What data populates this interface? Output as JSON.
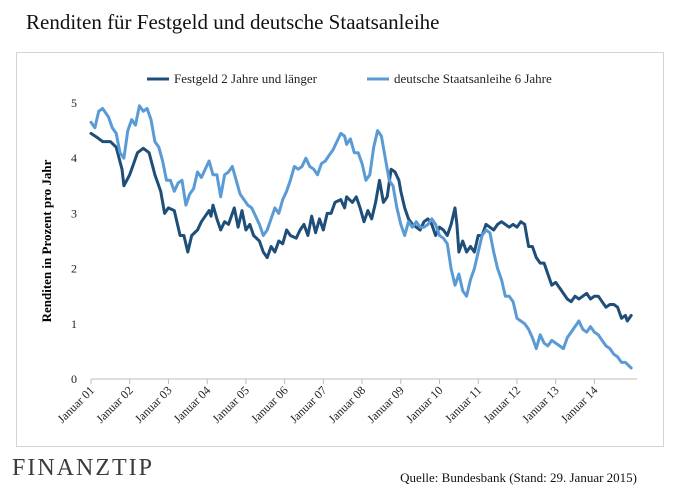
{
  "chart_data": {
    "type": "line",
    "title": "Renditen für Festgeld und deutsche Staatsanleihe",
    "ylabel": "Renditen in Prozent pro Jahr",
    "xlabel": "",
    "ylim": [
      0,
      5
    ],
    "yticks": [
      0,
      1,
      2,
      3,
      4,
      5
    ],
    "xlim": [
      2001.0,
      2015.1
    ],
    "xtick_labels": [
      "Januar 01",
      "Januar 02",
      "Januar 03",
      "Januar 04",
      "Januar 05",
      "Januar 06",
      "Januar 07",
      "Januar 08",
      "Januar 09",
      "Januar 10",
      "Januar 11",
      "Januar 12",
      "Januar 13",
      "Januar 14"
    ],
    "xtick_positions": [
      2001,
      2002,
      2003,
      2004,
      2005,
      2006,
      2007,
      2008,
      2009,
      2010,
      2011,
      2012,
      2013,
      2014
    ],
    "grid": false,
    "legend": "top",
    "series": [
      {
        "name": "Festgeld 2 Jahre und länger",
        "color": "#1f4e79",
        "points": [
          [
            2001.0,
            4.45
          ],
          [
            2001.15,
            4.38
          ],
          [
            2001.3,
            4.3
          ],
          [
            2001.5,
            4.3
          ],
          [
            2001.65,
            4.2
          ],
          [
            2001.8,
            3.8
          ],
          [
            2001.85,
            3.5
          ],
          [
            2002.0,
            3.7
          ],
          [
            2002.2,
            4.1
          ],
          [
            2002.35,
            4.18
          ],
          [
            2002.5,
            4.1
          ],
          [
            2002.65,
            3.7
          ],
          [
            2002.8,
            3.4
          ],
          [
            2002.9,
            3.0
          ],
          [
            2003.0,
            3.1
          ],
          [
            2003.15,
            3.05
          ],
          [
            2003.3,
            2.6
          ],
          [
            2003.4,
            2.6
          ],
          [
            2003.5,
            2.3
          ],
          [
            2003.6,
            2.6
          ],
          [
            2003.75,
            2.7
          ],
          [
            2003.85,
            2.85
          ],
          [
            2003.95,
            2.95
          ],
          [
            2004.05,
            3.05
          ],
          [
            2004.1,
            2.95
          ],
          [
            2004.15,
            3.15
          ],
          [
            2004.25,
            2.9
          ],
          [
            2004.35,
            2.7
          ],
          [
            2004.45,
            2.85
          ],
          [
            2004.55,
            2.8
          ],
          [
            2004.7,
            3.1
          ],
          [
            2004.8,
            2.75
          ],
          [
            2004.9,
            3.05
          ],
          [
            2005.0,
            2.7
          ],
          [
            2005.1,
            2.8
          ],
          [
            2005.2,
            2.6
          ],
          [
            2005.35,
            2.5
          ],
          [
            2005.45,
            2.3
          ],
          [
            2005.55,
            2.2
          ],
          [
            2005.65,
            2.4
          ],
          [
            2005.75,
            2.3
          ],
          [
            2005.85,
            2.5
          ],
          [
            2005.95,
            2.45
          ],
          [
            2006.05,
            2.7
          ],
          [
            2006.15,
            2.6
          ],
          [
            2006.3,
            2.55
          ],
          [
            2006.4,
            2.7
          ],
          [
            2006.5,
            2.8
          ],
          [
            2006.6,
            2.6
          ],
          [
            2006.7,
            2.95
          ],
          [
            2006.8,
            2.65
          ],
          [
            2006.9,
            2.9
          ],
          [
            2007.0,
            2.7
          ],
          [
            2007.1,
            3.0
          ],
          [
            2007.2,
            3.0
          ],
          [
            2007.3,
            3.2
          ],
          [
            2007.45,
            3.25
          ],
          [
            2007.55,
            3.1
          ],
          [
            2007.6,
            3.3
          ],
          [
            2007.75,
            3.2
          ],
          [
            2007.85,
            3.3
          ],
          [
            2007.95,
            3.1
          ],
          [
            2008.05,
            2.85
          ],
          [
            2008.15,
            3.05
          ],
          [
            2008.25,
            2.9
          ],
          [
            2008.35,
            3.2
          ],
          [
            2008.45,
            3.6
          ],
          [
            2008.55,
            3.2
          ],
          [
            2008.65,
            3.3
          ],
          [
            2008.75,
            3.8
          ],
          [
            2008.85,
            3.75
          ],
          [
            2008.95,
            3.6
          ],
          [
            2009.0,
            3.4
          ],
          [
            2009.1,
            3.1
          ],
          [
            2009.2,
            2.9
          ],
          [
            2009.3,
            2.8
          ],
          [
            2009.4,
            2.75
          ],
          [
            2009.5,
            2.7
          ],
          [
            2009.6,
            2.85
          ],
          [
            2009.7,
            2.9
          ],
          [
            2009.8,
            2.8
          ],
          [
            2009.9,
            2.6
          ],
          [
            2010.0,
            2.75
          ],
          [
            2010.1,
            2.7
          ],
          [
            2010.2,
            2.6
          ],
          [
            2010.3,
            2.8
          ],
          [
            2010.4,
            3.1
          ],
          [
            2010.45,
            2.8
          ],
          [
            2010.5,
            2.3
          ],
          [
            2010.6,
            2.5
          ],
          [
            2010.7,
            2.3
          ],
          [
            2010.8,
            2.4
          ],
          [
            2010.9,
            2.3
          ],
          [
            2011.0,
            2.6
          ],
          [
            2011.1,
            2.6
          ],
          [
            2011.2,
            2.8
          ],
          [
            2011.3,
            2.75
          ],
          [
            2011.4,
            2.7
          ],
          [
            2011.5,
            2.8
          ],
          [
            2011.6,
            2.85
          ],
          [
            2011.7,
            2.8
          ],
          [
            2011.8,
            2.75
          ],
          [
            2011.9,
            2.8
          ],
          [
            2012.0,
            2.75
          ],
          [
            2012.1,
            2.85
          ],
          [
            2012.2,
            2.8
          ],
          [
            2012.3,
            2.4
          ],
          [
            2012.4,
            2.4
          ],
          [
            2012.5,
            2.2
          ],
          [
            2012.6,
            2.1
          ],
          [
            2012.7,
            2.1
          ],
          [
            2012.8,
            1.9
          ],
          [
            2012.9,
            1.7
          ],
          [
            2013.0,
            1.75
          ],
          [
            2013.1,
            1.65
          ],
          [
            2013.2,
            1.55
          ],
          [
            2013.3,
            1.45
          ],
          [
            2013.4,
            1.4
          ],
          [
            2013.5,
            1.5
          ],
          [
            2013.6,
            1.45
          ],
          [
            2013.7,
            1.5
          ],
          [
            2013.8,
            1.55
          ],
          [
            2013.9,
            1.45
          ],
          [
            2014.0,
            1.5
          ],
          [
            2014.1,
            1.5
          ],
          [
            2014.2,
            1.4
          ],
          [
            2014.3,
            1.3
          ],
          [
            2014.4,
            1.35
          ],
          [
            2014.5,
            1.35
          ],
          [
            2014.6,
            1.3
          ],
          [
            2014.7,
            1.1
          ],
          [
            2014.8,
            1.15
          ],
          [
            2014.85,
            1.05
          ],
          [
            2014.95,
            1.15
          ]
        ]
      },
      {
        "name": "deutsche Staatsanleihe 6 Jahre",
        "color": "#5b9bd5",
        "points": [
          [
            2001.0,
            4.65
          ],
          [
            2001.1,
            4.55
          ],
          [
            2001.2,
            4.85
          ],
          [
            2001.3,
            4.9
          ],
          [
            2001.45,
            4.75
          ],
          [
            2001.55,
            4.55
          ],
          [
            2001.65,
            4.45
          ],
          [
            2001.75,
            4.1
          ],
          [
            2001.85,
            4.0
          ],
          [
            2001.95,
            4.5
          ],
          [
            2002.05,
            4.7
          ],
          [
            2002.15,
            4.6
          ],
          [
            2002.25,
            4.95
          ],
          [
            2002.35,
            4.85
          ],
          [
            2002.45,
            4.9
          ],
          [
            2002.55,
            4.7
          ],
          [
            2002.65,
            4.3
          ],
          [
            2002.75,
            4.2
          ],
          [
            2002.85,
            3.95
          ],
          [
            2002.95,
            3.6
          ],
          [
            2003.05,
            3.6
          ],
          [
            2003.15,
            3.4
          ],
          [
            2003.25,
            3.55
          ],
          [
            2003.35,
            3.6
          ],
          [
            2003.45,
            3.15
          ],
          [
            2003.55,
            3.35
          ],
          [
            2003.65,
            3.45
          ],
          [
            2003.75,
            3.75
          ],
          [
            2003.85,
            3.65
          ],
          [
            2003.95,
            3.8
          ],
          [
            2004.05,
            3.95
          ],
          [
            2004.15,
            3.7
          ],
          [
            2004.25,
            3.7
          ],
          [
            2004.35,
            3.3
          ],
          [
            2004.45,
            3.7
          ],
          [
            2004.55,
            3.75
          ],
          [
            2004.65,
            3.85
          ],
          [
            2004.75,
            3.6
          ],
          [
            2004.85,
            3.35
          ],
          [
            2004.95,
            3.25
          ],
          [
            2005.05,
            3.15
          ],
          [
            2005.15,
            3.1
          ],
          [
            2005.25,
            2.95
          ],
          [
            2005.35,
            2.8
          ],
          [
            2005.45,
            2.6
          ],
          [
            2005.55,
            2.7
          ],
          [
            2005.65,
            2.9
          ],
          [
            2005.75,
            3.1
          ],
          [
            2005.85,
            3.0
          ],
          [
            2005.95,
            3.25
          ],
          [
            2006.05,
            3.4
          ],
          [
            2006.15,
            3.6
          ],
          [
            2006.25,
            3.85
          ],
          [
            2006.35,
            3.8
          ],
          [
            2006.45,
            3.85
          ],
          [
            2006.55,
            4.0
          ],
          [
            2006.65,
            3.85
          ],
          [
            2006.75,
            3.8
          ],
          [
            2006.85,
            3.7
          ],
          [
            2006.95,
            3.9
          ],
          [
            2007.05,
            3.95
          ],
          [
            2007.15,
            4.05
          ],
          [
            2007.25,
            4.15
          ],
          [
            2007.35,
            4.3
          ],
          [
            2007.45,
            4.45
          ],
          [
            2007.55,
            4.4
          ],
          [
            2007.6,
            4.25
          ],
          [
            2007.7,
            4.35
          ],
          [
            2007.8,
            4.1
          ],
          [
            2007.9,
            4.1
          ],
          [
            2008.0,
            3.9
          ],
          [
            2008.1,
            3.6
          ],
          [
            2008.2,
            3.7
          ],
          [
            2008.3,
            4.2
          ],
          [
            2008.4,
            4.5
          ],
          [
            2008.5,
            4.4
          ],
          [
            2008.6,
            4.0
          ],
          [
            2008.7,
            3.6
          ],
          [
            2008.8,
            3.5
          ],
          [
            2008.9,
            3.1
          ],
          [
            2009.0,
            2.8
          ],
          [
            2009.1,
            2.6
          ],
          [
            2009.2,
            2.85
          ],
          [
            2009.3,
            2.75
          ],
          [
            2009.4,
            2.85
          ],
          [
            2009.5,
            2.75
          ],
          [
            2009.6,
            2.75
          ],
          [
            2009.7,
            2.8
          ],
          [
            2009.8,
            2.9
          ],
          [
            2009.9,
            2.8
          ],
          [
            2010.0,
            2.6
          ],
          [
            2010.1,
            2.55
          ],
          [
            2010.2,
            2.45
          ],
          [
            2010.3,
            2.0
          ],
          [
            2010.4,
            1.7
          ],
          [
            2010.5,
            1.9
          ],
          [
            2010.6,
            1.6
          ],
          [
            2010.7,
            1.5
          ],
          [
            2010.8,
            1.8
          ],
          [
            2010.9,
            2.0
          ],
          [
            2011.0,
            2.3
          ],
          [
            2011.1,
            2.6
          ],
          [
            2011.2,
            2.7
          ],
          [
            2011.3,
            2.65
          ],
          [
            2011.4,
            2.3
          ],
          [
            2011.5,
            2.0
          ],
          [
            2011.6,
            1.8
          ],
          [
            2011.7,
            1.5
          ],
          [
            2011.8,
            1.5
          ],
          [
            2011.9,
            1.4
          ],
          [
            2012.0,
            1.1
          ],
          [
            2012.1,
            1.05
          ],
          [
            2012.2,
            1.0
          ],
          [
            2012.3,
            0.9
          ],
          [
            2012.4,
            0.75
          ],
          [
            2012.5,
            0.55
          ],
          [
            2012.6,
            0.8
          ],
          [
            2012.7,
            0.65
          ],
          [
            2012.8,
            0.6
          ],
          [
            2012.9,
            0.7
          ],
          [
            2013.0,
            0.65
          ],
          [
            2013.1,
            0.6
          ],
          [
            2013.2,
            0.55
          ],
          [
            2013.3,
            0.75
          ],
          [
            2013.4,
            0.85
          ],
          [
            2013.5,
            0.95
          ],
          [
            2013.6,
            1.05
          ],
          [
            2013.7,
            0.9
          ],
          [
            2013.8,
            0.85
          ],
          [
            2013.9,
            0.95
          ],
          [
            2014.0,
            0.85
          ],
          [
            2014.1,
            0.8
          ],
          [
            2014.2,
            0.7
          ],
          [
            2014.3,
            0.6
          ],
          [
            2014.4,
            0.55
          ],
          [
            2014.5,
            0.45
          ],
          [
            2014.6,
            0.4
          ],
          [
            2014.7,
            0.3
          ],
          [
            2014.8,
            0.3
          ],
          [
            2014.95,
            0.2
          ]
        ]
      }
    ]
  },
  "footer": {
    "logo": "FINANZTIP",
    "source": "Quelle:  Bundesbank (Stand:  29.  Januar 2015)"
  }
}
